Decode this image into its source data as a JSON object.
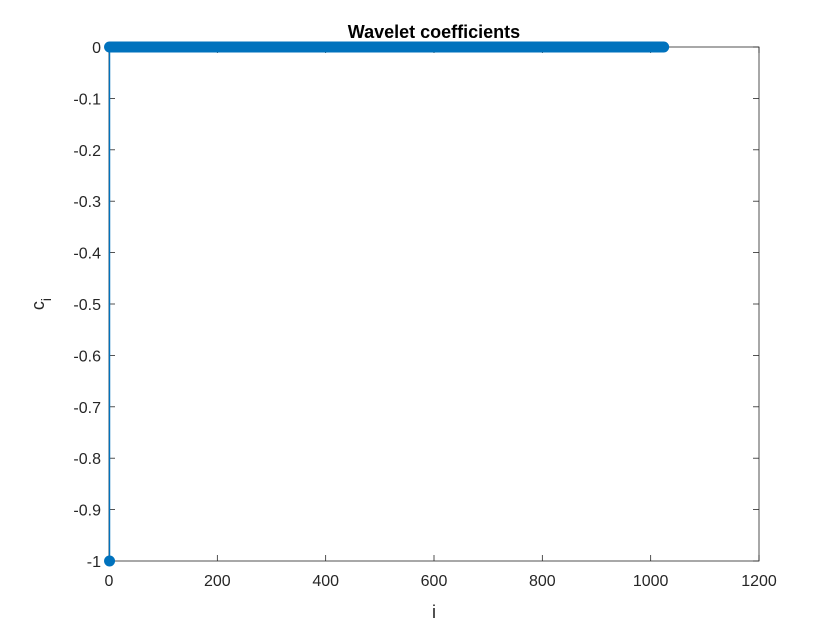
{
  "chart_data": {
    "type": "stem",
    "title": "Wavelet coefficients",
    "xlabel": "i",
    "ylabel_main": "c",
    "ylabel_sub": "i",
    "xlim": [
      0,
      1200
    ],
    "ylim": [
      -1,
      0
    ],
    "xticks": [
      0,
      200,
      400,
      600,
      800,
      1000,
      1200
    ],
    "xtick_labels": [
      "0",
      "200",
      "400",
      "600",
      "800",
      "1000",
      "1200"
    ],
    "yticks": [
      0,
      -0.1,
      -0.2,
      -0.3,
      -0.4,
      -0.5,
      -0.6,
      -0.7,
      -0.8,
      -0.9,
      -1
    ],
    "ytick_labels": [
      "0",
      "-0.1",
      "-0.2",
      "-0.3",
      "-0.4",
      "-0.5",
      "-0.6",
      "-0.7",
      "-0.8",
      "-0.9",
      "-1"
    ],
    "grid": false,
    "series_color": "#0072BD",
    "series": [
      {
        "x_start": 1,
        "x_end": 1024,
        "baseline_value": 0,
        "nonzero_points": [
          {
            "x": 1,
            "y": -1
          }
        ]
      }
    ]
  }
}
